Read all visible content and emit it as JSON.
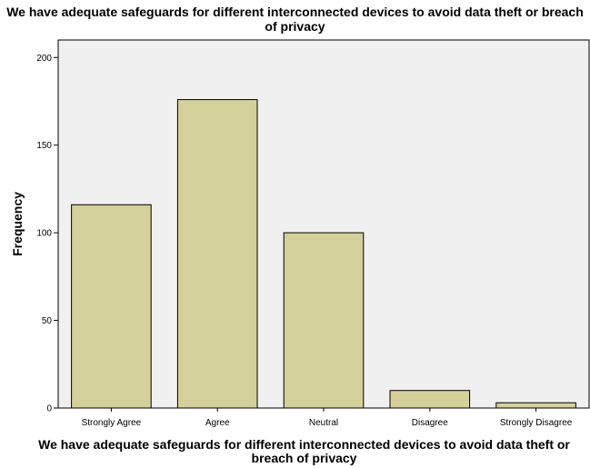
{
  "chart_data": {
    "type": "bar",
    "title": "We have adequate safeguards for different interconnected devices to avoid data theft or breach of privacy",
    "xlabel": "We have adequate safeguards for different interconnected devices to avoid data theft or breach of privacy",
    "ylabel": "Frequency",
    "categories": [
      "Strongly Agree",
      "Agree",
      "Neutral",
      "Disagree",
      "Strongly Disagree"
    ],
    "values": [
      116,
      176,
      100,
      10,
      3
    ],
    "ylim": [
      0,
      210
    ],
    "yticks": [
      0,
      50,
      100,
      150,
      200
    ],
    "grid": false,
    "colors": {
      "bar_fill": "#d4d099",
      "bar_stroke": "#000000",
      "plot_background": "#f0f0f0"
    }
  }
}
